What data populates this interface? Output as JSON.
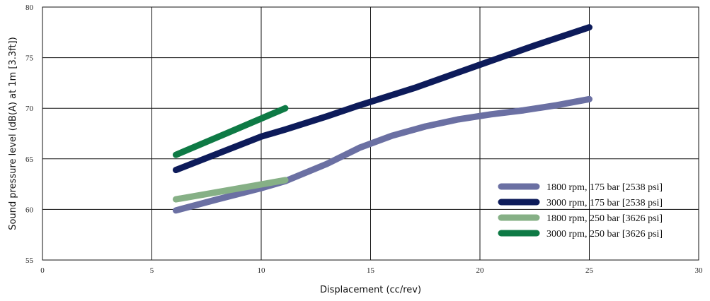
{
  "chart_data": {
    "type": "line",
    "xlabel": "Displacement (cc/rev)",
    "ylabel": "Sound pressure level (dB(A) at 1m [3.3ft])",
    "xlim": [
      0,
      30
    ],
    "ylim": [
      55,
      80
    ],
    "x_ticks": [
      "0",
      "5",
      "10",
      "15",
      "20",
      "25",
      "30"
    ],
    "y_ticks": [
      "55",
      "60",
      "65",
      "70",
      "75",
      "80"
    ],
    "grid": true,
    "legend_position": "lower-right",
    "series": [
      {
        "name": "1800 rpm, 175 bar [2538 psi]",
        "color": "#6b70a3",
        "points": [
          [
            6.1,
            59.9
          ],
          [
            8,
            61
          ],
          [
            10,
            62.1
          ],
          [
            11.1,
            62.8
          ],
          [
            13,
            64.5
          ],
          [
            14.5,
            66.1
          ],
          [
            16,
            67.3
          ],
          [
            17.5,
            68.2
          ],
          [
            19,
            68.9
          ],
          [
            20.5,
            69.4
          ],
          [
            22,
            69.8
          ],
          [
            23.5,
            70.3
          ],
          [
            25,
            70.9
          ]
        ]
      },
      {
        "name": "3000 rpm, 175 bar [2538 psi]",
        "color": "#0d1b5a",
        "points": [
          [
            6.1,
            63.9
          ],
          [
            8,
            65.5
          ],
          [
            10,
            67.2
          ],
          [
            11.1,
            67.9
          ],
          [
            13,
            69.2
          ],
          [
            14.5,
            70.3
          ],
          [
            17,
            72
          ],
          [
            20,
            74.3
          ],
          [
            22.5,
            76.2
          ],
          [
            25,
            78
          ]
        ]
      },
      {
        "name": "1800 rpm, 250 bar [3626 psi]",
        "color": "#86b086",
        "points": [
          [
            6.1,
            61
          ],
          [
            8.5,
            61.9
          ],
          [
            11.1,
            62.9
          ]
        ]
      },
      {
        "name": "3000 rpm, 250 bar [3626 psi]",
        "color": "#0e7a45",
        "points": [
          [
            6.1,
            65.4
          ],
          [
            8.5,
            67.6
          ],
          [
            11.1,
            70
          ]
        ]
      }
    ]
  }
}
